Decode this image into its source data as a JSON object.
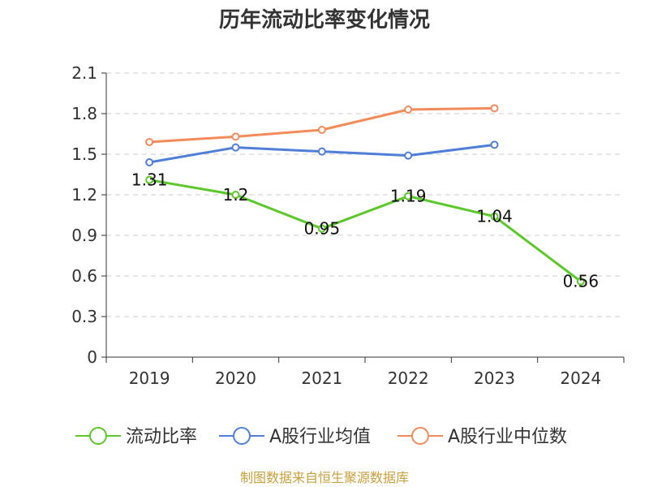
{
  "chart_data": {
    "type": "line",
    "title": "历年流动比率变化情况",
    "categories": [
      "2019",
      "2020",
      "2021",
      "2022",
      "2023",
      "2024"
    ],
    "ylim": [
      0,
      2.1
    ],
    "yticks": [
      "0",
      "0.3",
      "0.6",
      "0.9",
      "1.2",
      "1.5",
      "1.8",
      "2.1"
    ],
    "grid": true,
    "legend_position": "bottom",
    "series": [
      {
        "name": "流动比率",
        "color": "#5cc82a",
        "values": [
          1.31,
          1.2,
          0.95,
          1.19,
          1.04,
          0.56
        ],
        "labels": [
          "1.31",
          "1.2",
          "0.95",
          "1.19",
          "1.04",
          "0.56"
        ]
      },
      {
        "name": "A股行业均值",
        "color": "#4f7fd8",
        "values": [
          1.44,
          1.55,
          1.52,
          1.49,
          1.57,
          null
        ]
      },
      {
        "name": "A股行业中位数",
        "color": "#f38b5b",
        "values": [
          1.59,
          1.63,
          1.68,
          1.83,
          1.84,
          null
        ]
      }
    ]
  },
  "source_note": "制图数据来自恒生聚源数据库"
}
